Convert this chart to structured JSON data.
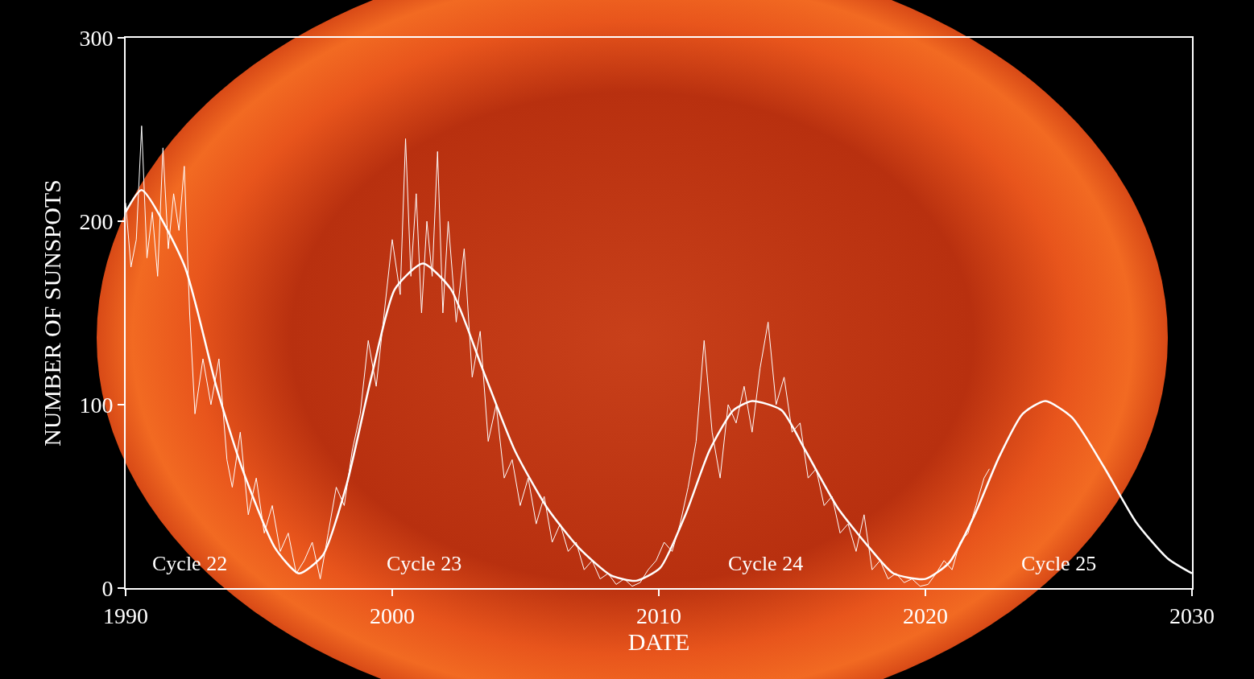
{
  "chart_data": {
    "type": "line",
    "xlabel": "DATE",
    "ylabel": "NUMBER OF SUNSPOTS",
    "xlim": [
      1990,
      2030
    ],
    "xticks": [
      1990,
      2000,
      2010,
      2020,
      2030
    ],
    "ylim": [
      0,
      300
    ],
    "yticks": [
      0,
      100,
      200,
      300
    ],
    "grid": false,
    "marker": "none",
    "line_style": "solid",
    "series": [
      {
        "color": "#ffffff",
        "x": [
          1990.0,
          1990.2,
          1990.4,
          1990.6,
          1990.8,
          1991.0,
          1991.2,
          1991.4,
          1991.6,
          1991.8,
          1992.0,
          1992.2,
          1992.4,
          1992.6,
          1992.9,
          1993.2,
          1993.5,
          1993.8,
          1994.0,
          1994.3,
          1994.6,
          1994.9,
          1995.2,
          1995.5,
          1995.8,
          1996.1,
          1996.4,
          1996.7,
          1997.0,
          1997.3,
          1997.6,
          1997.9,
          1998.2,
          1998.5,
          1998.8,
          1999.1,
          1999.4,
          1999.7,
          2000.0,
          2000.3,
          2000.5,
          2000.7,
          2000.9,
          2001.1,
          2001.3,
          2001.5,
          2001.7,
          2001.9,
          2002.1,
          2002.4,
          2002.7,
          2003.0,
          2003.3,
          2003.6,
          2003.9,
          2004.2,
          2004.5,
          2004.8,
          2005.1,
          2005.4,
          2005.7,
          2006.0,
          2006.3,
          2006.6,
          2006.9,
          2007.2,
          2007.5,
          2007.8,
          2008.1,
          2008.4,
          2008.7,
          2009.0,
          2009.3,
          2009.6,
          2009.9,
          2010.2,
          2010.5,
          2010.8,
          2011.1,
          2011.4,
          2011.7,
          2012.0,
          2012.3,
          2012.6,
          2012.9,
          2013.2,
          2013.5,
          2013.8,
          2014.1,
          2014.4,
          2014.7,
          2015.0,
          2015.3,
          2015.6,
          2015.9,
          2016.2,
          2016.5,
          2016.8,
          2017.1,
          2017.4,
          2017.7,
          2018.0,
          2018.3,
          2018.6,
          2018.9,
          2019.2,
          2019.5,
          2019.8,
          2020.1,
          2020.4,
          2020.7,
          2021.0,
          2021.3,
          2021.6,
          2021.9,
          2022.2,
          2022.4
        ],
        "values": [
          210,
          175,
          190,
          252,
          180,
          205,
          170,
          240,
          185,
          215,
          195,
          230,
          150,
          95,
          125,
          100,
          125,
          70,
          55,
          85,
          40,
          60,
          30,
          45,
          20,
          30,
          8,
          15,
          25,
          5,
          30,
          55,
          45,
          75,
          95,
          135,
          110,
          150,
          190,
          160,
          245,
          170,
          215,
          150,
          200,
          170,
          238,
          150,
          200,
          145,
          185,
          115,
          140,
          80,
          100,
          60,
          70,
          45,
          60,
          35,
          50,
          25,
          35,
          20,
          25,
          10,
          15,
          5,
          8,
          2,
          5,
          1,
          3,
          10,
          15,
          25,
          20,
          35,
          55,
          80,
          135,
          85,
          60,
          100,
          90,
          110,
          85,
          120,
          145,
          100,
          115,
          85,
          90,
          60,
          65,
          45,
          50,
          30,
          35,
          20,
          40,
          10,
          15,
          5,
          8,
          3,
          5,
          1,
          2,
          8,
          15,
          10,
          25,
          30,
          45,
          60,
          65
        ]
      },
      {
        "color": "#ffffff",
        "x": [
          1990.0,
          1990.6,
          1992.2,
          1993.4,
          1994.35,
          1995.6,
          1996.5,
          1997.4,
          1998.3,
          1999.2,
          2000.1,
          2001.15,
          2002.2,
          2003.4,
          2004.6,
          2005.8,
          2007.0,
          2008.2,
          2009.15,
          2010.05,
          2011.0,
          2011.9,
          2012.8,
          2013.5,
          2014.6,
          2015.5,
          2016.7,
          2017.9,
          2018.8,
          2020.0,
          2020.9,
          2021.85,
          2022.75,
          2023.65,
          2024.5,
          2025.5,
          2026.7,
          2027.9,
          2029.1,
          2030.0
        ],
        "values": [
          205,
          217,
          176,
          110,
          66,
          22,
          8,
          18,
          57,
          114,
          163,
          177,
          163,
          119,
          75,
          44,
          22,
          7,
          4,
          11,
          40,
          75,
          97,
          102,
          97,
          75,
          44,
          22,
          8,
          5,
          14,
          40,
          71,
          95,
          102,
          93,
          66,
          36,
          16,
          8
        ]
      }
    ],
    "annotations": [
      "Cycle 22",
      "Cycle 23",
      "Cycle 24",
      "Cycle 25"
    ]
  }
}
